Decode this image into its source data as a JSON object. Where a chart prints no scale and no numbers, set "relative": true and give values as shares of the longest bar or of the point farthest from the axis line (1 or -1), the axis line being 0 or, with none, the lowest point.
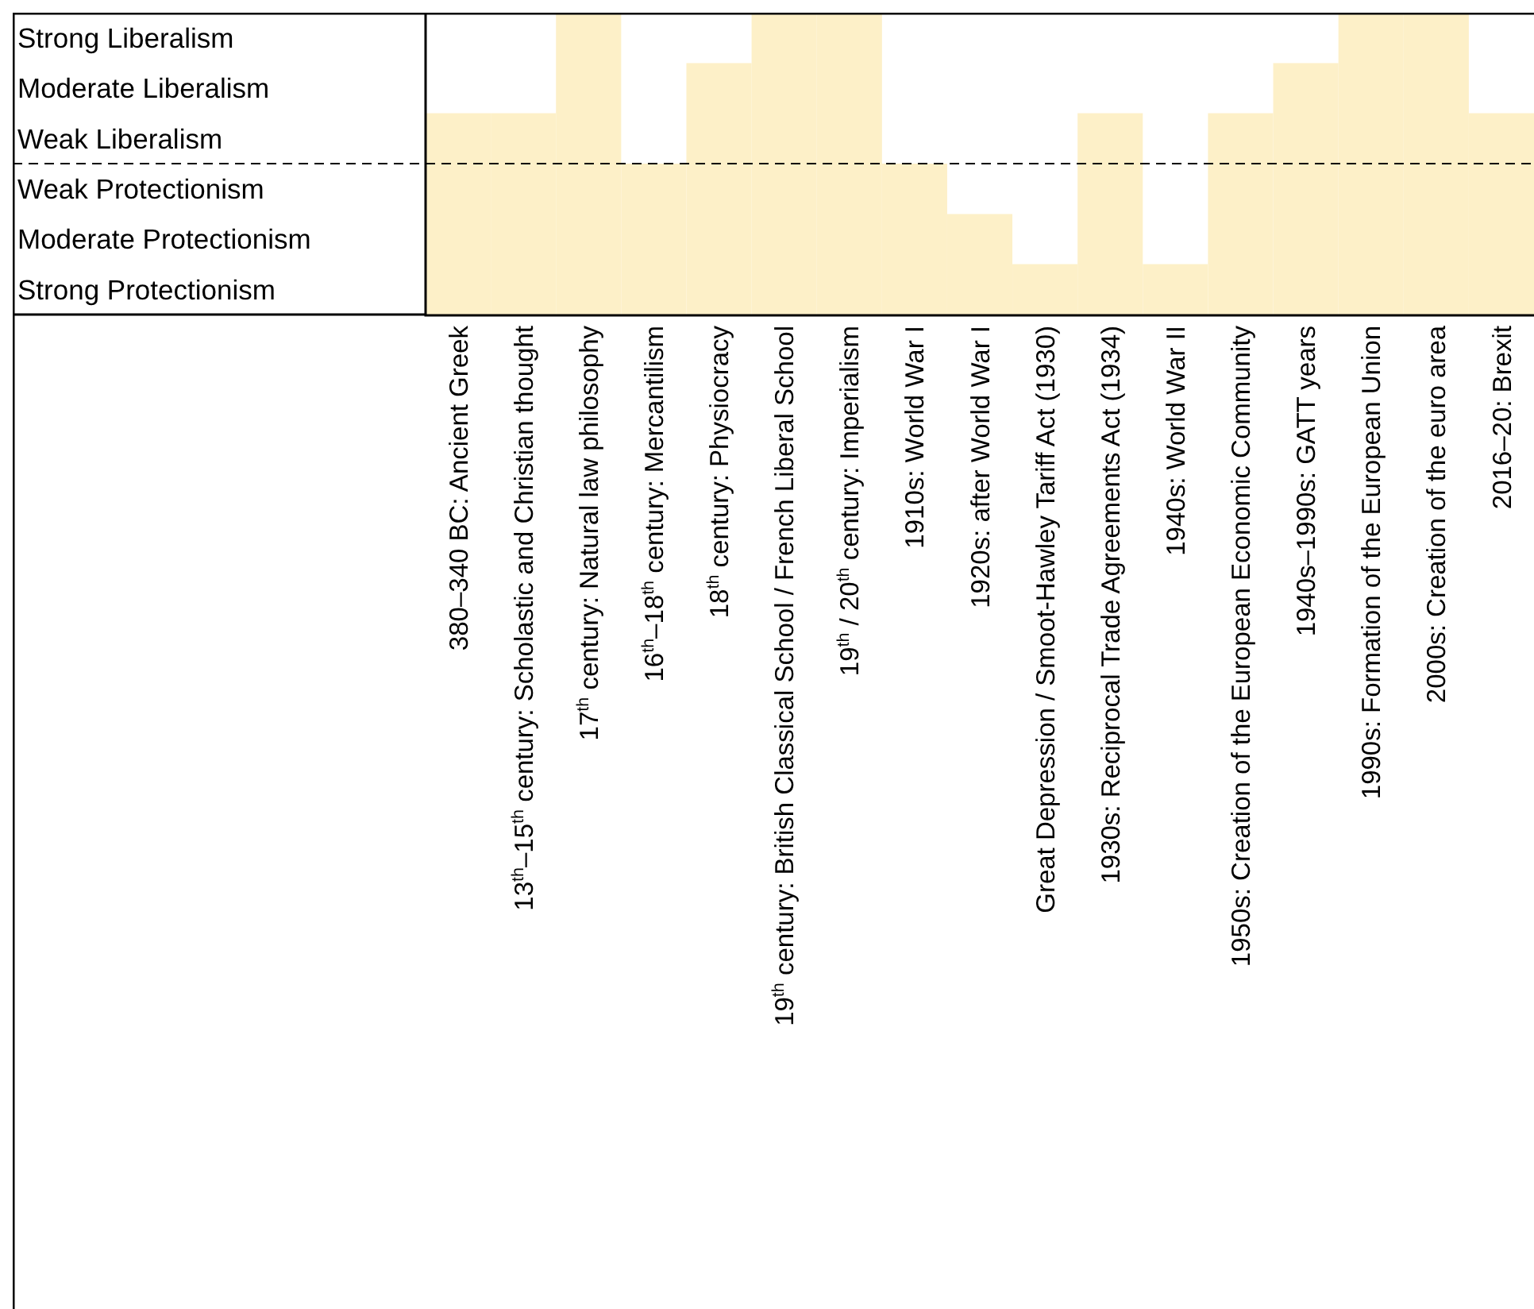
{
  "chart_data": {
    "type": "bar",
    "categories": [
      "380–340 BC: Ancient Greek",
      "13$^{th}$–15$^{th}$ century: Scholastic and Christian thought",
      "17$^{th}$ century: Natural law philosophy",
      "16$^{th}$–18$^{th}$ century: Mercantilism",
      "18$^{th}$ century: Physiocracy",
      "19$^{th}$ century: British Classical School / French Liberal School",
      "19$^{th}$ / 20$^{th}$ century: Imperialism",
      "1910s: World War I",
      "1920s: after World War I",
      "Great Depression / Smoot-Hawley Tariff Act (1930)",
      "1930s: Reciprocal Trade Agreements Act (1934)",
      "1940s: World War II",
      "1950s: Creation of the European Economic Community",
      "1940s–1990s: GATT years",
      "1990s: Formation of the European Union",
      "2000s: Creation of the euro area",
      "2016–20: Brexit"
    ],
    "values": [
      0.667,
      0.667,
      1,
      0.5,
      0.833,
      1,
      1,
      0.5,
      0.333,
      0.167,
      0.667,
      0.167,
      0.667,
      0.833,
      1,
      1,
      0.667
    ],
    "color": "#fdf0c8",
    "relative": true,
    "annotations": [
      "Strong Liberalism",
      "Moderate Liberalism",
      "Weak Liberalism",
      "Weak Protectionism",
      "Moderate Protectionism",
      "Strong Protectionism"
    ],
    "ref_lines": [
      {
        "axis": "y",
        "value": 0.5,
        "line_style": "dashed",
        "color": "#000000"
      }
    ]
  }
}
